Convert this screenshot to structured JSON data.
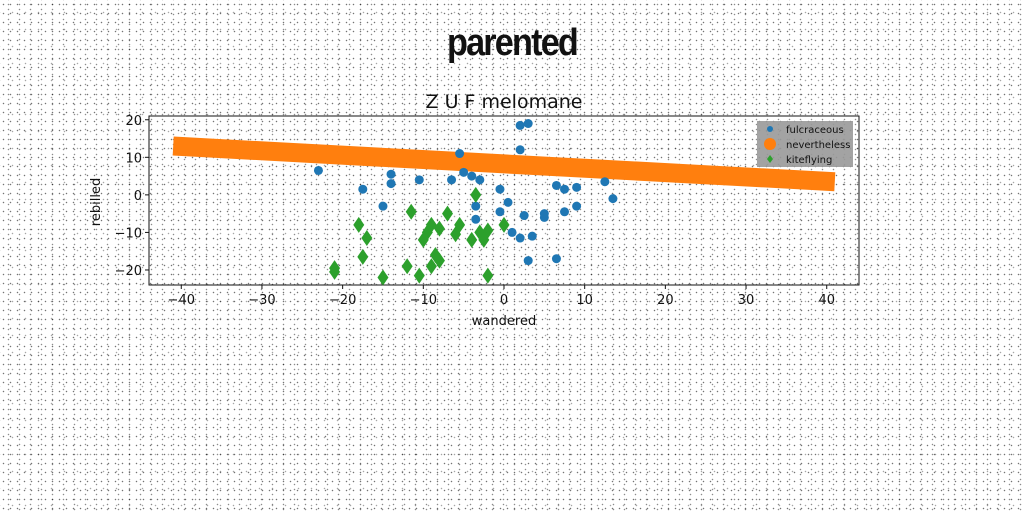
{
  "suptitle": "parented",
  "chart_data": {
    "type": "scatter",
    "title": "Z U F melomane",
    "xlabel": "wandered",
    "ylabel": "rebilled",
    "xlim": [
      -44,
      44
    ],
    "ylim": [
      -24,
      21
    ],
    "xticks": [
      -40,
      -30,
      -20,
      -10,
      0,
      10,
      20,
      30,
      40
    ],
    "yticks": [
      -20,
      -10,
      0,
      10,
      20
    ],
    "grid": false,
    "legend_position": "top-right",
    "series": [
      {
        "name": "fulcraceous",
        "marker": "circle",
        "color": "#1f77b4",
        "points": [
          [
            -23,
            6.5
          ],
          [
            -17.5,
            1.5
          ],
          [
            -15,
            -3
          ],
          [
            -14,
            5.5
          ],
          [
            -14,
            3
          ],
          [
            -10.5,
            4
          ],
          [
            -6.5,
            4
          ],
          [
            -5.5,
            11
          ],
          [
            -5,
            6
          ],
          [
            -4,
            5
          ],
          [
            -3.5,
            -3
          ],
          [
            -3,
            4
          ],
          [
            -3.5,
            -6.5
          ],
          [
            -0.5,
            1.5
          ],
          [
            -0.5,
            -4.5
          ],
          [
            0.5,
            -2
          ],
          [
            1,
            -10
          ],
          [
            2,
            -11.5
          ],
          [
            2,
            12
          ],
          [
            2,
            18.5
          ],
          [
            3,
            19
          ],
          [
            2.5,
            -5.5
          ],
          [
            3,
            -17.5
          ],
          [
            3.5,
            -11
          ],
          [
            5,
            -6
          ],
          [
            5,
            -5
          ],
          [
            6.5,
            2.5
          ],
          [
            6.5,
            -17
          ],
          [
            7.5,
            1.5
          ],
          [
            7.5,
            -4.5
          ],
          [
            9,
            2
          ],
          [
            9,
            -3
          ],
          [
            12.5,
            3.5
          ],
          [
            13.5,
            -1
          ]
        ]
      },
      {
        "name": "nevertheless",
        "marker": "band",
        "color": "#ff7f0e",
        "line": {
          "x": [
            -41,
            41
          ],
          "y": [
            13,
            3.5
          ]
        }
      },
      {
        "name": "kiteflying",
        "marker": "diamond",
        "color": "#2ca02c",
        "points": [
          [
            -21,
            -19.5
          ],
          [
            -21,
            -20.5
          ],
          [
            -18,
            -8
          ],
          [
            -17.5,
            -16.5
          ],
          [
            -17,
            -11.5
          ],
          [
            -15,
            -22
          ],
          [
            -12,
            -19
          ],
          [
            -11.5,
            -4.5
          ],
          [
            -10.5,
            -21.5
          ],
          [
            -10,
            -12
          ],
          [
            -9.5,
            -10
          ],
          [
            -9,
            -19
          ],
          [
            -9,
            -8
          ],
          [
            -8.5,
            -16
          ],
          [
            -8,
            -17.5
          ],
          [
            -8,
            -9
          ],
          [
            -7,
            -5
          ],
          [
            -6,
            -10.5
          ],
          [
            -5.5,
            -8
          ],
          [
            -4,
            -12
          ],
          [
            -3.5,
            0
          ],
          [
            -3,
            -10
          ],
          [
            -2.5,
            -12
          ],
          [
            -2,
            -9.5
          ],
          [
            -2,
            -21.5
          ],
          [
            0,
            -8
          ]
        ]
      }
    ]
  }
}
